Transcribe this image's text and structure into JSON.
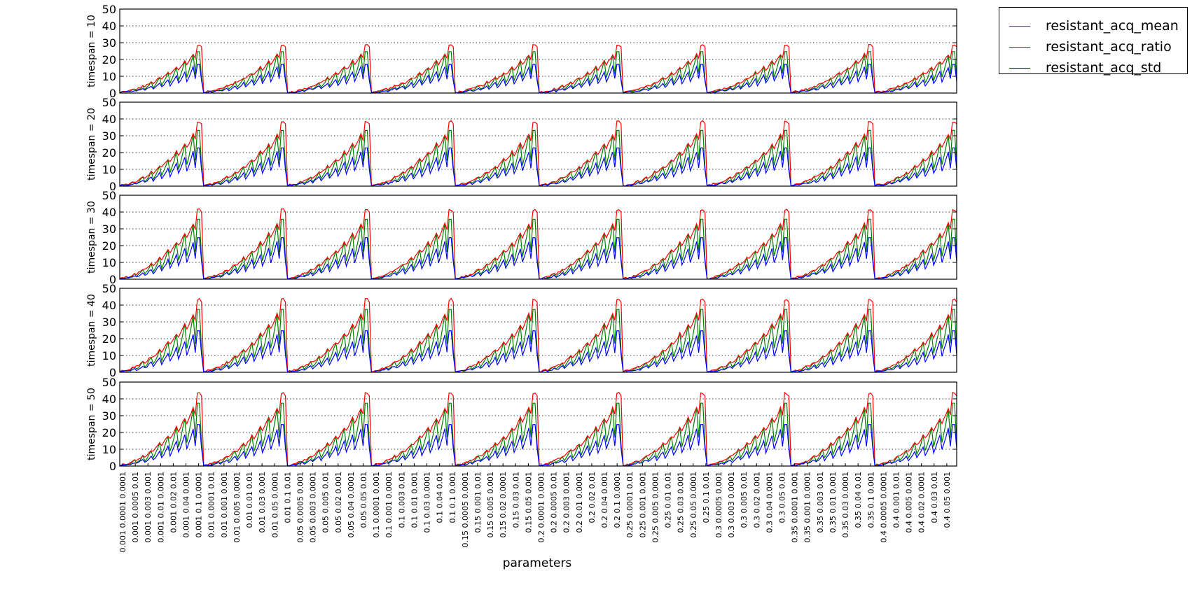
{
  "chart_data": {
    "type": "line",
    "xlabel": "parameters",
    "grid": "y-dotted",
    "legend_position": "outside top-right",
    "panels": [
      {
        "ylabel": "timespan = 10",
        "ylim": [
          0,
          50
        ],
        "yticks": [
          0,
          10,
          20,
          30,
          40,
          50
        ],
        "peak_ratio": 29,
        "peak_std": 18
      },
      {
        "ylabel": "timespan = 20",
        "ylim": [
          0,
          50
        ],
        "yticks": [
          0,
          10,
          20,
          30,
          40,
          50
        ],
        "peak_ratio": 39,
        "peak_std": 24
      },
      {
        "ylabel": "timespan = 30",
        "ylim": [
          0,
          50
        ],
        "yticks": [
          0,
          10,
          20,
          30,
          40,
          50
        ],
        "peak_ratio": 42,
        "peak_std": 26
      },
      {
        "ylabel": "timespan = 40",
        "ylim": [
          0,
          50
        ],
        "yticks": [
          0,
          10,
          20,
          30,
          40,
          50
        ],
        "peak_ratio": 44,
        "peak_std": 26
      },
      {
        "ylabel": "timespan = 50",
        "ylim": [
          0,
          50
        ],
        "yticks": [
          0,
          10,
          20,
          30,
          40,
          50
        ],
        "peak_ratio": 44,
        "peak_std": 26
      }
    ],
    "series": [
      {
        "name": "resistant_acq_mean",
        "color": "#008000"
      },
      {
        "name": "resistant_acq_ratio",
        "color": "#ff0000"
      },
      {
        "name": "resistant_acq_std",
        "color": "#0000ff"
      }
    ],
    "x_tick_labels": [
      "0.001 0.0001 0.0001",
      "0.001 0.0005 0.01",
      "0.001 0.003 0.001",
      "0.001 0.01 0.0001",
      "0.001 0.02 0.01",
      "0.001 0.04 0.001",
      "0.001 0.1 0.0001",
      "0.01 0.0001 0.01",
      "0.01 0.001 0.001",
      "0.01 0.005 0.0001",
      "0.01 0.01 0.01",
      "0.01 0.03 0.001",
      "0.01 0.05 0.0001",
      "0.01 0.1 0.01",
      "0.05 0.0005 0.001",
      "0.05 0.003 0.0001",
      "0.05 0.005 0.01",
      "0.05 0.02 0.001",
      "0.05 0.04 0.0001",
      "0.05 0.05 0.01",
      "0.1 0.0001 0.001",
      "0.1 0.001 0.0001",
      "0.1 0.003 0.01",
      "0.1 0.01 0.001",
      "0.1 0.03 0.0001",
      "0.1 0.04 0.01",
      "0.1 0.1 0.001",
      "0.15 0.0005 0.0001",
      "0.15 0.001 0.01",
      "0.15 0.005 0.001",
      "0.15 0.02 0.0001",
      "0.15 0.03 0.01",
      "0.15 0.05 0.001",
      "0.2 0.0001 0.0001",
      "0.2 0.0005 0.01",
      "0.2 0.003 0.001",
      "0.2 0.01 0.0001",
      "0.2 0.02 0.01",
      "0.2 0.04 0.001",
      "0.2 0.1 0.0001",
      "0.25 0.0001 0.01",
      "0.25 0.001 0.001",
      "0.25 0.005 0.0001",
      "0.25 0.01 0.01",
      "0.25 0.03 0.001",
      "0.25 0.05 0.0001",
      "0.25 0.1 0.01",
      "0.3 0.0005 0.001",
      "0.3 0.003 0.0001",
      "0.3 0.005 0.01",
      "0.3 0.02 0.001",
      "0.3 0.04 0.0001",
      "0.3 0.05 0.01",
      "0.35 0.0001 0.001",
      "0.35 0.001 0.0001",
      "0.35 0.003 0.01",
      "0.35 0.01 0.001",
      "0.35 0.03 0.0001",
      "0.35 0.04 0.01",
      "0.35 0.1 0.001",
      "0.4 0.0005 0.0001",
      "0.4 0.001 0.01",
      "0.4 0.005 0.001",
      "0.4 0.02 0.0001",
      "0.4 0.03 0.01",
      "0.4 0.05 0.001"
    ]
  }
}
